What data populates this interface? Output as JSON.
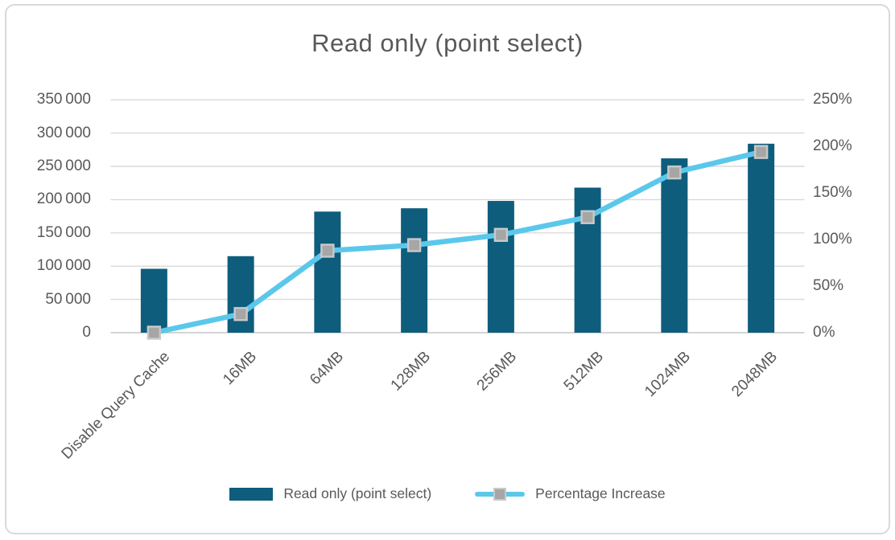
{
  "title": "Read only (point select)",
  "colors": {
    "bar": "#0e5d7d",
    "line": "#5bc8eb",
    "marker_fill": "#a6a6a6",
    "marker_border": "#c9c9c9",
    "gridline": "#d9d9d9",
    "axis_line": "#c6c6c6",
    "text": "#595959",
    "card_border": "#d9d9d9"
  },
  "chart_data": {
    "type": "combo-bar-line",
    "title": "Read only (point select)",
    "categories": [
      "Disable Query Cache",
      "16MB",
      "64MB",
      "128MB",
      "256MB",
      "512MB",
      "1024MB",
      "2048MB"
    ],
    "series": [
      {
        "name": "Read only (point select)",
        "type": "bar",
        "axis": "left",
        "color": "#0e5d7d",
        "values": [
          96000,
          115000,
          182000,
          187000,
          198000,
          218000,
          262000,
          284000
        ]
      },
      {
        "name": "Percentage Increase",
        "type": "line",
        "axis": "right",
        "color": "#5bc8eb",
        "marker": "square",
        "marker_color": "#a6a6a6",
        "values_percent": [
          0,
          20,
          88,
          94,
          105,
          124,
          172,
          194
        ]
      }
    ],
    "left_axis": {
      "min": 0,
      "max": 350000,
      "step": 50000,
      "tick_labels": [
        "0",
        "50 000",
        "100 000",
        "150 000",
        "200 000",
        "250 000",
        "300 000",
        "350 000"
      ]
    },
    "right_axis": {
      "min": 0,
      "max": 250,
      "step": 50,
      "tick_labels": [
        "0%",
        "50%",
        "100%",
        "150%",
        "200%",
        "250%"
      ]
    },
    "grid": true,
    "legend_position": "bottom"
  },
  "legend": {
    "items": [
      {
        "label": "Read only (point select)",
        "swatch": "bar"
      },
      {
        "label": "Percentage Increase",
        "swatch": "line-marker"
      }
    ]
  }
}
